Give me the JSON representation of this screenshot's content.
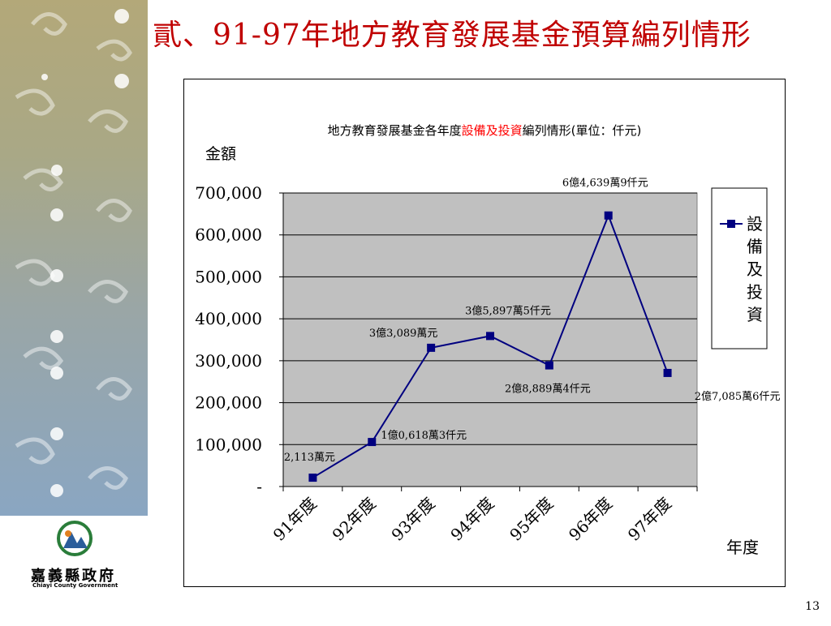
{
  "slide": {
    "title": "貳、91-97年地方教育發展基金預算編列情形",
    "page_number": "13"
  },
  "logo": {
    "name": "嘉義縣政府",
    "subtitle": "Chiayi County Government"
  },
  "colors": {
    "title": "#c00000",
    "plot_bg": "#c0c0c0",
    "series": "#000080",
    "highlight": "#ff0000"
  },
  "chart_data": {
    "type": "line",
    "title_parts": [
      {
        "text": "地方教育發展基金各年度",
        "highlight": false
      },
      {
        "text": "設備及投資",
        "highlight": true
      },
      {
        "text": "編列情形(單位：仟元)",
        "highlight": false
      }
    ],
    "ylabel": "金額",
    "xlabel": "年度",
    "categories": [
      "91年度",
      "92年度",
      "93年度",
      "94年度",
      "95年度",
      "96年度",
      "97年度"
    ],
    "series": [
      {
        "name": "設備及投資",
        "values": [
          21130,
          106183,
          330890,
          358975,
          288894,
          646399,
          270856
        ]
      }
    ],
    "data_labels": [
      "2,113萬元",
      "1億0,618萬3仟元",
      "3億3,089萬元",
      "3億5,897萬5仟元",
      "2億8,889萬4仟元",
      "6億4,639萬9仟元",
      "2億7,085萬6仟元"
    ],
    "ylim": [
      0,
      700000
    ],
    "y_ticks": [
      0,
      100000,
      200000,
      300000,
      400000,
      500000,
      600000,
      700000
    ],
    "y_tick_labels": [
      "-",
      "100,000",
      "200,000",
      "300,000",
      "400,000",
      "500,000",
      "600,000",
      "700,000"
    ],
    "grid": true,
    "legend_position": "right",
    "legend_text_vertical": "設\n備\n及\n投\n資"
  }
}
